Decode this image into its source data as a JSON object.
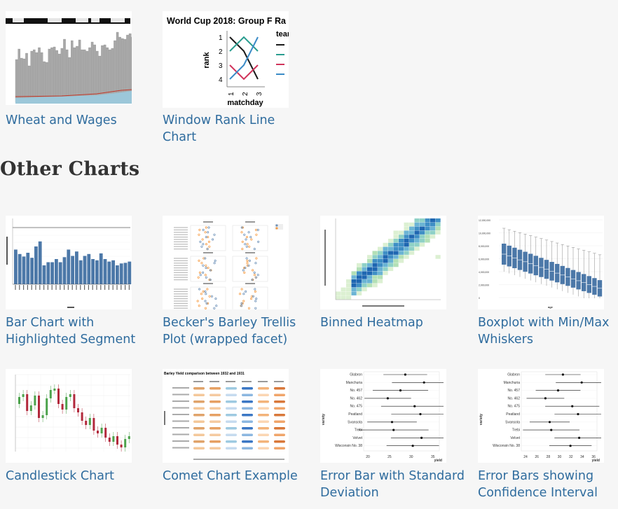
{
  "gallery_top": [
    {
      "caption": "Wheat and Wages"
    },
    {
      "caption": "Window Rank Line Chart",
      "thumb_title": "World Cup 2018: Group F Ra",
      "y_title": "rank",
      "x_title": "matchday",
      "legend_title": "team",
      "y_ticks": [
        "1",
        "2",
        "3",
        "4"
      ],
      "x_ticks": [
        "1",
        "2",
        "3"
      ]
    }
  ],
  "section": {
    "heading": "Other Charts"
  },
  "gallery_other": [
    {
      "caption": "Bar Chart with Highlighted Segment"
    },
    {
      "caption": "Becker's Barley Trellis Plot (wrapped facet)"
    },
    {
      "caption": "Binned Heatmap"
    },
    {
      "caption": "Boxplot with Min/Max Whiskers",
      "y_ticks": [
        "12,000,000",
        "10,000,000",
        "8,000,000",
        "6,000,000",
        "4,000,000",
        "2,000,000",
        "0"
      ],
      "x_title": "age"
    },
    {
      "caption": "Candlestick Chart"
    },
    {
      "caption": "Comet Chart Example",
      "thumb_title": "Barley Yield comparison between 1932 and 1931"
    },
    {
      "caption": "Error Bar with Standard Deviation",
      "varieties": [
        "Glabron",
        "Manchuria",
        "No. 457",
        "No. 462",
        "No. 475",
        "Peatland",
        "Svansota",
        "Trebi",
        "Velvet",
        "Wisconsin No. 38"
      ],
      "x_ticks": [
        "20",
        "25",
        "30",
        "35"
      ],
      "x_title": "yield",
      "y_title": "variety"
    },
    {
      "caption": "Error Bars showing Confidence Interval",
      "varieties": [
        "Glabron",
        "Manchuria",
        "No. 457",
        "No. 462",
        "No. 475",
        "Peatland",
        "Svansota",
        "Trebi",
        "Velvet",
        "Wisconsin No. 38"
      ],
      "x_ticks": [
        "24",
        "26",
        "28",
        "30",
        "32",
        "34",
        "36"
      ],
      "x_title": "yield",
      "y_title": "variety"
    }
  ]
}
